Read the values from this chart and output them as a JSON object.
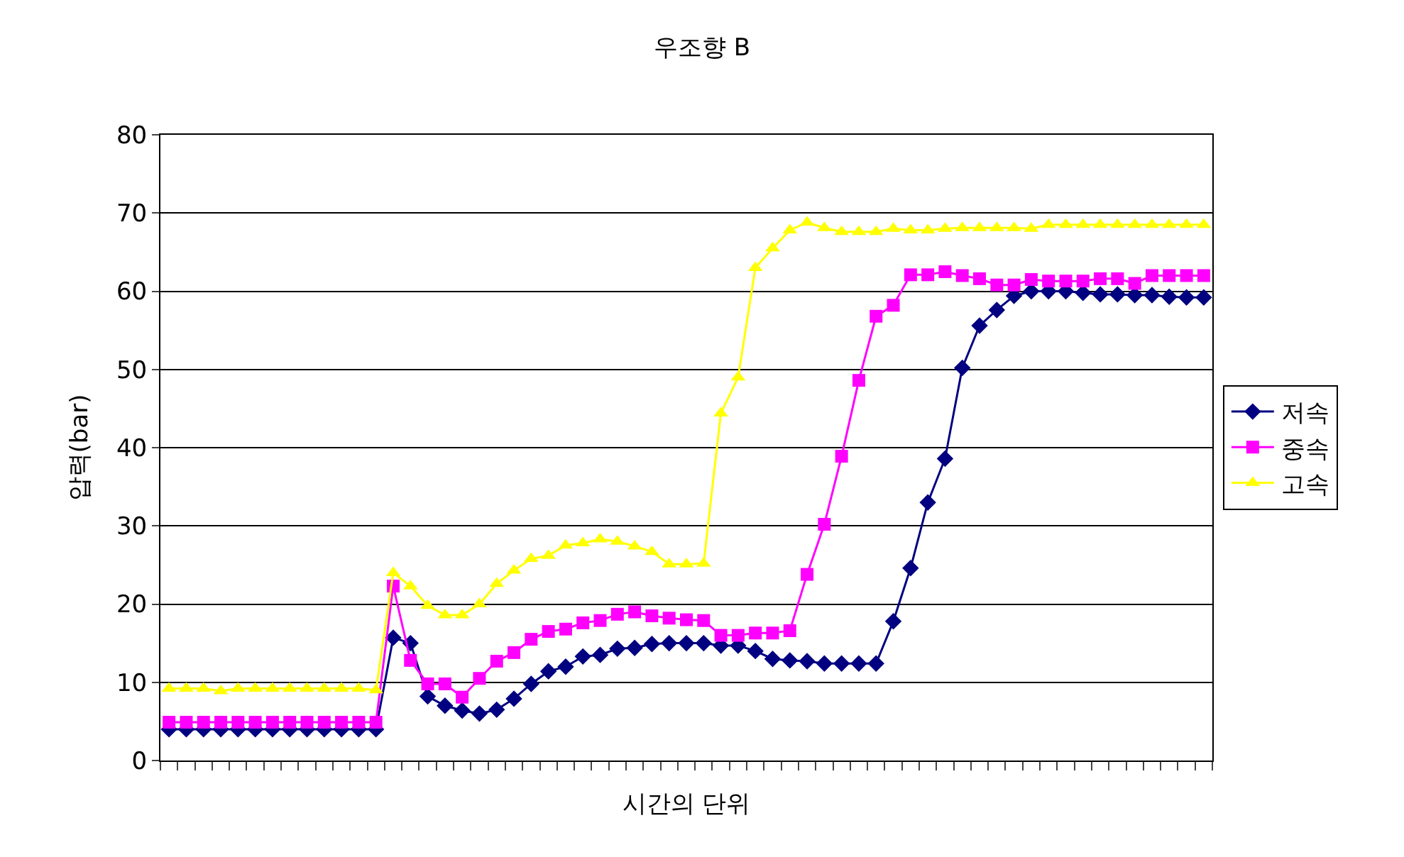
{
  "chart_data": {
    "type": "line",
    "title": "우조향 B",
    "xlabel": "시간의 단위",
    "ylabel": "압력(bar)",
    "categories": [
      null,
      null,
      null,
      null,
      null,
      null,
      null,
      null,
      null,
      null,
      null,
      null,
      null,
      null,
      null,
      null,
      null,
      null,
      null,
      null,
      null,
      null,
      null,
      null,
      null,
      null,
      null,
      null,
      null,
      null,
      null,
      null,
      null,
      null,
      null,
      null,
      null,
      null,
      null,
      null,
      null,
      null,
      null,
      null,
      null,
      null,
      null,
      null,
      null,
      null,
      null,
      null,
      null,
      null,
      null,
      null,
      null,
      null,
      null,
      null,
      null
    ],
    "series": [
      {
        "name": "저속",
        "color": "#000080",
        "marker": "diamond",
        "values": [
          4,
          4,
          4,
          4,
          4,
          4,
          4,
          4,
          4,
          4,
          4,
          4,
          4,
          15.7,
          15,
          8.2,
          7,
          6.4,
          6,
          6.5,
          7.9,
          9.8,
          11.4,
          12,
          13.3,
          13.5,
          14.3,
          14.4,
          14.9,
          15,
          15,
          15,
          14.7,
          14.7,
          14,
          13,
          12.8,
          12.7,
          12.4,
          12.4,
          12.4,
          12.4,
          17.8,
          24.6,
          33,
          38.6,
          50.2,
          55.6,
          57.6,
          59.4,
          60,
          60,
          60,
          59.8,
          59.6,
          59.6,
          59.5,
          59.5,
          59.3,
          59.2,
          59.2
        ]
      },
      {
        "name": "중속",
        "color": "#ff00ff",
        "marker": "square",
        "values": [
          4.9,
          4.9,
          4.9,
          4.9,
          4.9,
          4.9,
          4.9,
          4.9,
          4.9,
          4.9,
          4.9,
          4.9,
          4.9,
          22.3,
          12.8,
          9.8,
          9.8,
          8.1,
          10.5,
          12.7,
          13.8,
          15.5,
          16.5,
          16.8,
          17.6,
          17.9,
          18.7,
          19,
          18.5,
          18.2,
          18,
          17.9,
          16,
          16,
          16.3,
          16.3,
          16.6,
          23.8,
          30.2,
          38.9,
          48.6,
          56.8,
          58.2,
          62.1,
          62.1,
          62.5,
          62,
          61.6,
          60.8,
          60.8,
          61.5,
          61.3,
          61.3,
          61.3,
          61.6,
          61.6,
          61,
          62,
          62,
          62,
          62
        ]
      },
      {
        "name": "고속",
        "color": "#ffff00",
        "marker": "triangle",
        "values": [
          9.2,
          9.2,
          9.2,
          8.9,
          9.2,
          9.2,
          9.2,
          9.2,
          9.2,
          9.2,
          9.2,
          9.2,
          9,
          24,
          22.3,
          19.8,
          18.6,
          18.6,
          20,
          22.6,
          24.3,
          25.8,
          26.2,
          27.5,
          27.8,
          28.3,
          28,
          27.4,
          26.7,
          25.1,
          25.1,
          25.2,
          44.4,
          49,
          63,
          65.5,
          67.8,
          68.8,
          68.1,
          67.6,
          67.6,
          67.6,
          68,
          67.8,
          67.8,
          68,
          68.1,
          68.1,
          68.1,
          68.1,
          68,
          68.5,
          68.5,
          68.5,
          68.5,
          68.5,
          68.5,
          68.5,
          68.5,
          68.5,
          68.5
        ]
      }
    ],
    "ylim": [
      0,
      80
    ],
    "yticks": [
      0,
      10,
      20,
      30,
      40,
      50,
      60,
      70,
      80
    ],
    "grid": "y",
    "legend": "right",
    "tick_labels": "y"
  }
}
